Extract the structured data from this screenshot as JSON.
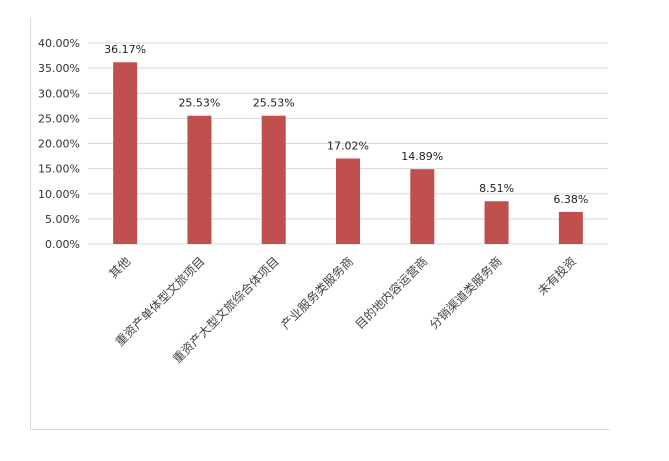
{
  "chart_data": {
    "type": "bar",
    "title": "",
    "xlabel": "",
    "ylabel": "",
    "ylim": [
      0,
      40
    ],
    "yticks": [
      "0.00%",
      "5.00%",
      "10.00%",
      "15.00%",
      "20.00%",
      "25.00%",
      "30.00%",
      "35.00%",
      "40.00%"
    ],
    "categories": [
      "其他",
      "重资产单体型文旅项目",
      "重资产大型文旅综合体项目",
      "产业服务类服务商",
      "目的地内容运营商",
      "分销渠道类服务商",
      "未有投资"
    ],
    "values": [
      36.17,
      25.53,
      25.53,
      17.02,
      14.89,
      8.51,
      6.38
    ],
    "data_labels": [
      "36.17%",
      "25.53%",
      "25.53%",
      "17.02%",
      "14.89%",
      "8.51%",
      "6.38%"
    ],
    "grid": true,
    "legend": "none",
    "bar_color": "#c0504d",
    "grid_color": "#d9d9d9"
  }
}
